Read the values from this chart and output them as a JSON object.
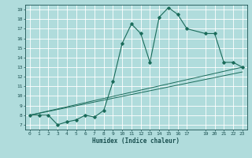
{
  "title": "",
  "xlabel": "Humidex (Indice chaleur)",
  "ylabel": "",
  "bg_color": "#b0dcdc",
  "grid_color": "#ffffff",
  "line_color": "#1a6b5a",
  "x_ticks": [
    0,
    1,
    2,
    3,
    4,
    5,
    6,
    7,
    8,
    9,
    10,
    11,
    12,
    13,
    14,
    15,
    16,
    17,
    19,
    20,
    21,
    22,
    23
  ],
  "x_tick_labels": [
    "0",
    "1",
    "2",
    "3",
    "4",
    "5",
    "6",
    "7",
    "8",
    "9",
    "10",
    "11",
    "12",
    "13",
    "14",
    "15",
    "16",
    "17",
    "19",
    "20",
    "21",
    "22",
    "23"
  ],
  "y_ticks": [
    7,
    8,
    9,
    10,
    11,
    12,
    13,
    14,
    15,
    16,
    17,
    18,
    19
  ],
  "xlim": [
    -0.5,
    23.5
  ],
  "ylim": [
    6.5,
    19.5
  ],
  "series1_x": [
    0,
    1,
    2,
    3,
    4,
    5,
    6,
    7,
    8,
    9,
    10,
    11,
    12,
    13,
    14,
    15,
    16,
    17,
    19,
    20,
    21,
    22,
    23
  ],
  "series1_y": [
    8,
    8,
    8,
    7,
    7.3,
    7.5,
    8,
    7.8,
    8.5,
    11.5,
    15.5,
    17.5,
    16.5,
    13.5,
    18.2,
    19.2,
    18.5,
    17,
    16.5,
    16.5,
    13.5,
    13.5,
    13
  ],
  "series2_x": [
    0,
    23
  ],
  "series2_y": [
    8,
    13
  ],
  "series3_x": [
    0,
    23
  ],
  "series3_y": [
    8,
    12.5
  ]
}
